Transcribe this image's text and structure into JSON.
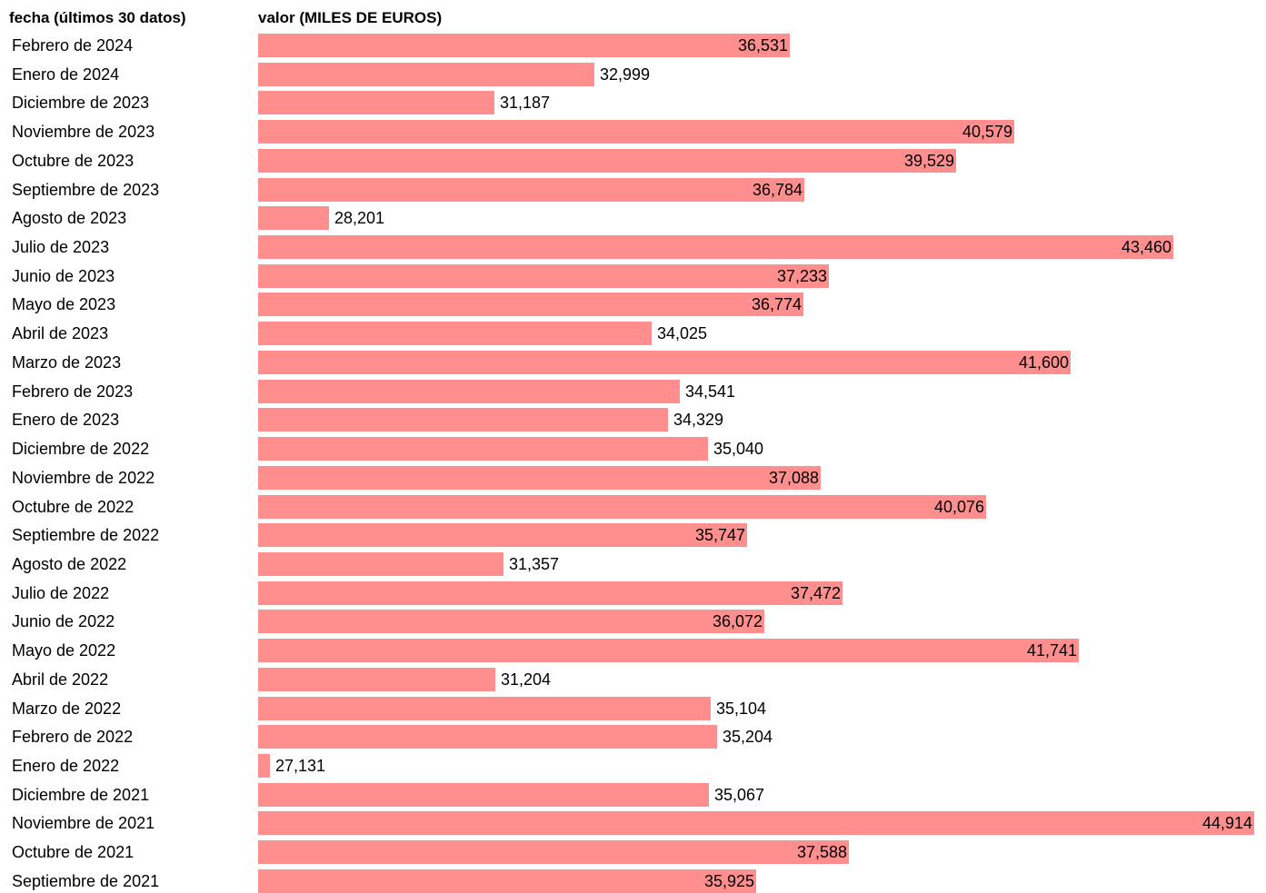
{
  "chart_data": {
    "type": "bar",
    "orientation": "horizontal",
    "column_headers": {
      "category": "fecha (últimos 30 datos)",
      "value": "valor (MILES DE EUROS)"
    },
    "bar_color": "#ff8f8f",
    "categories": [
      "Febrero de 2024",
      "Enero de 2024",
      "Diciembre de 2023",
      "Noviembre de 2023",
      "Octubre de 2023",
      "Septiembre de 2023",
      "Agosto de 2023",
      "Julio de 2023",
      "Junio de 2023",
      "Mayo de 2023",
      "Abril de 2023",
      "Marzo de 2023",
      "Febrero de 2023",
      "Enero de 2023",
      "Diciembre de 2022",
      "Noviembre de 2022",
      "Octubre de 2022",
      "Septiembre de 2022",
      "Agosto de 2022",
      "Julio de 2022",
      "Junio de 2022",
      "Mayo de 2022",
      "Abril de 2022",
      "Marzo de 2022",
      "Febrero de 2022",
      "Enero de 2022",
      "Diciembre de 2021",
      "Noviembre de 2021",
      "Octubre de 2021",
      "Septiembre de 2021"
    ],
    "values": [
      36531,
      32999,
      31187,
      40579,
      39529,
      36784,
      28201,
      43460,
      37233,
      36774,
      34025,
      41600,
      34541,
      34329,
      35040,
      37088,
      40076,
      35747,
      31357,
      37472,
      36072,
      41741,
      31204,
      35104,
      35204,
      27131,
      35067,
      44914,
      37588,
      35925
    ],
    "value_labels": [
      "36,531",
      "32,999",
      "31,187",
      "40,579",
      "39,529",
      "36,784",
      "28,201",
      "43,460",
      "37,233",
      "36,774",
      "34,025",
      "41,600",
      "34,541",
      "34,329",
      "35,040",
      "37,088",
      "40,076",
      "35,747",
      "31,357",
      "37,472",
      "36,072",
      "41,741",
      "31,204",
      "35,104",
      "35,204",
      "27,131",
      "35,067",
      "44,914",
      "37,588",
      "35,925"
    ],
    "xlim": [
      26922,
      44914
    ],
    "grid": false,
    "legend": "none"
  }
}
